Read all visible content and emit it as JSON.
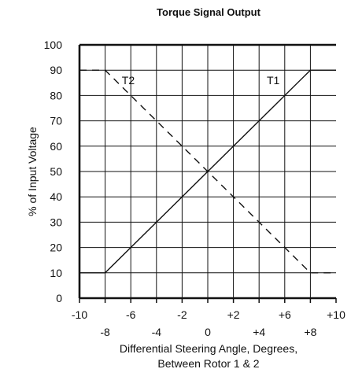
{
  "chart_data": {
    "type": "line",
    "title": "Torque Signal Output",
    "xlabel_line1": "Differential Steering Angle, Degrees,",
    "xlabel_line2": "Between Rotor 1 & 2",
    "ylabel": "% of Input Voltage",
    "xlim": [
      -10,
      10
    ],
    "ylim": [
      0,
      100
    ],
    "grid": true,
    "x_ticks_upper": [
      {
        "value": -10,
        "label": "-10"
      },
      {
        "value": -6,
        "label": "-6"
      },
      {
        "value": -2,
        "label": "-2"
      },
      {
        "value": 2,
        "label": "+2"
      },
      {
        "value": 6,
        "label": "+6"
      },
      {
        "value": 10,
        "label": "+10"
      }
    ],
    "x_ticks_lower": [
      {
        "value": -8,
        "label": "-8"
      },
      {
        "value": -4,
        "label": "-4"
      },
      {
        "value": 0,
        "label": "0"
      },
      {
        "value": 4,
        "label": "+4"
      },
      {
        "value": 8,
        "label": "+8"
      }
    ],
    "y_ticks": [
      {
        "value": 0,
        "label": "0"
      },
      {
        "value": 10,
        "label": "10"
      },
      {
        "value": 20,
        "label": "20"
      },
      {
        "value": 30,
        "label": "30"
      },
      {
        "value": 40,
        "label": "40"
      },
      {
        "value": 50,
        "label": "50"
      },
      {
        "value": 60,
        "label": "60"
      },
      {
        "value": 70,
        "label": "70"
      },
      {
        "value": 80,
        "label": "80"
      },
      {
        "value": 90,
        "label": "90"
      },
      {
        "value": 100,
        "label": "100"
      }
    ],
    "series": [
      {
        "name": "T1",
        "style": "solid",
        "x": [
          -10,
          -8,
          8,
          10
        ],
        "y": [
          10,
          10,
          90,
          90
        ],
        "label_at": [
          4.6,
          86
        ]
      },
      {
        "name": "T2",
        "style": "dashed",
        "x": [
          -10,
          -8,
          8,
          10
        ],
        "y": [
          90,
          90,
          10,
          10
        ],
        "label_at": [
          -6.7,
          86
        ]
      }
    ]
  }
}
